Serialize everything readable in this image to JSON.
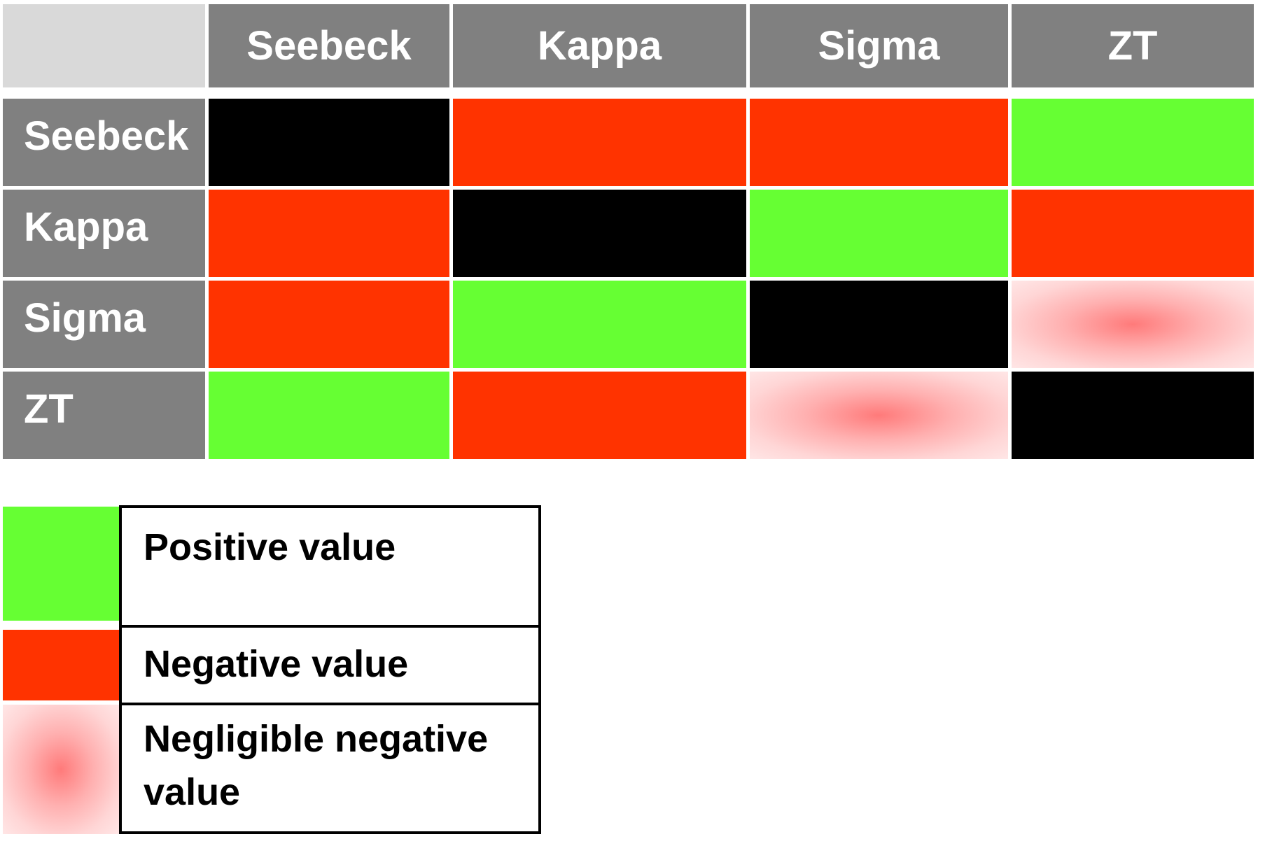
{
  "chart_data": {
    "type": "heatmap",
    "columns": [
      "Seebeck",
      "Kappa",
      "Sigma",
      "ZT"
    ],
    "rows": [
      "Seebeck",
      "Kappa",
      "Sigma",
      "ZT"
    ],
    "cells": [
      [
        "self",
        "negative",
        "negative",
        "positive"
      ],
      [
        "negative",
        "self",
        "positive",
        "negative"
      ],
      [
        "negative",
        "positive",
        "self",
        "negligible"
      ],
      [
        "positive",
        "negative",
        "negligible",
        "self"
      ]
    ],
    "colors": {
      "positive": "#66ff33",
      "negative": "#ff3300",
      "negligible": "#ff7a7a",
      "self": "#000000",
      "header": "#808080",
      "corner": "#d9d9d9"
    },
    "legend": [
      {
        "key": "positive",
        "label": "Positive value"
      },
      {
        "key": "negative",
        "label": "Negative value"
      },
      {
        "key": "negligible",
        "label": "Negligible negative value"
      }
    ]
  }
}
